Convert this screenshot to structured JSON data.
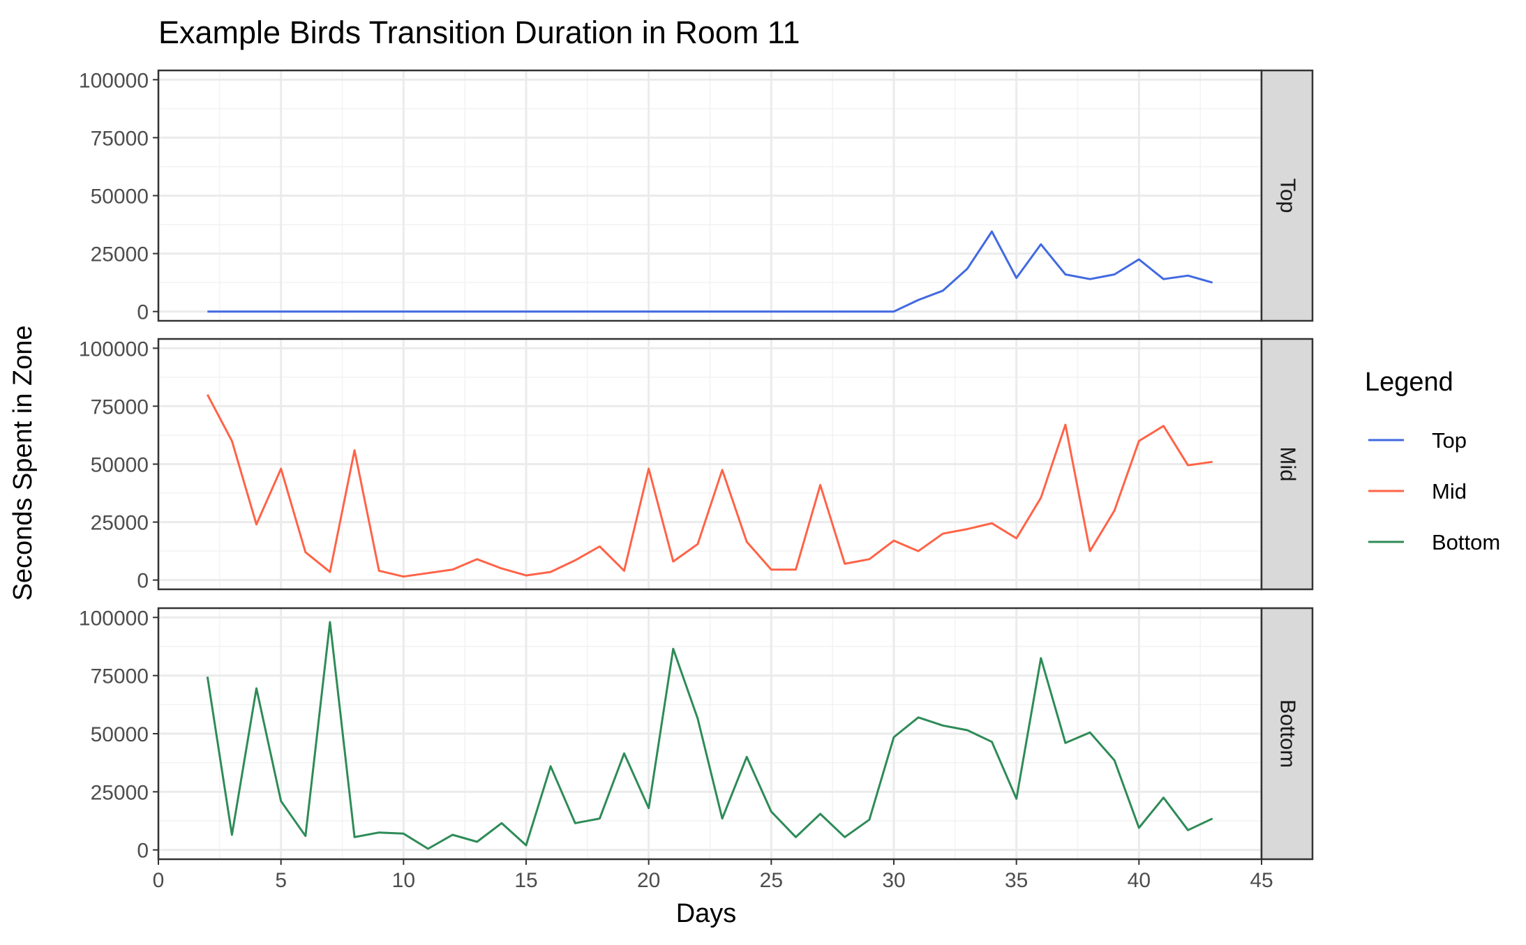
{
  "chart_data": {
    "type": "line",
    "title": "Example Birds Transition Duration in Room 11",
    "xlabel": "Days",
    "ylabel": "Seconds Spent in Zone",
    "xlim": [
      0,
      45
    ],
    "ylim": [
      -4000,
      104000
    ],
    "x_ticks": [
      0,
      5,
      10,
      15,
      20,
      25,
      30,
      35,
      40,
      45
    ],
    "y_ticks": [
      0,
      25000,
      50000,
      75000,
      100000
    ],
    "grid": true,
    "legend": {
      "title": "Legend",
      "position": "right",
      "entries": [
        "Top",
        "Mid",
        "Bottom"
      ]
    },
    "x": [
      2,
      3,
      4,
      5,
      6,
      7,
      8,
      9,
      10,
      11,
      12,
      13,
      14,
      15,
      16,
      17,
      18,
      19,
      20,
      21,
      22,
      23,
      24,
      25,
      26,
      27,
      28,
      29,
      30,
      31,
      32,
      33,
      34,
      35,
      36,
      37,
      38,
      39,
      40,
      41,
      42,
      43
    ],
    "series": [
      {
        "name": "Top",
        "panel": "Top",
        "color": "#4169E1",
        "values": [
          0,
          0,
          0,
          0,
          0,
          0,
          0,
          0,
          0,
          0,
          0,
          0,
          0,
          0,
          0,
          0,
          0,
          0,
          0,
          0,
          0,
          0,
          0,
          0,
          0,
          0,
          0,
          0,
          0,
          5000,
          9000,
          18500,
          34500,
          14500,
          29000,
          16000,
          14000,
          16000,
          22500,
          14000,
          15500,
          12500
        ]
      },
      {
        "name": "Mid",
        "panel": "Mid",
        "color": "#FF6347",
        "values": [
          80000,
          60000,
          24000,
          48000,
          12000,
          3500,
          56000,
          4000,
          1500,
          3000,
          4500,
          9000,
          5000,
          2000,
          3500,
          8500,
          14500,
          4000,
          48000,
          8000,
          15500,
          47500,
          16500,
          4500,
          4500,
          41000,
          7000,
          9000,
          17000,
          12500,
          20000,
          22000,
          24500,
          18000,
          35500,
          67000,
          12500,
          30000,
          60000,
          66500,
          49500,
          51000
        ]
      },
      {
        "name": "Bottom",
        "panel": "Bottom",
        "color": "#2E8B57",
        "values": [
          74500,
          6500,
          69500,
          21000,
          6000,
          98000,
          5500,
          7500,
          7000,
          500,
          6500,
          3500,
          11500,
          2000,
          36000,
          11500,
          13500,
          41500,
          18000,
          86500,
          56500,
          13500,
          40000,
          16500,
          5500,
          15500,
          5500,
          13000,
          48500,
          57000,
          53500,
          51500,
          46500,
          22000,
          82500,
          46000,
          50500,
          38500,
          9500,
          22500,
          8500,
          13500
        ]
      }
    ]
  }
}
